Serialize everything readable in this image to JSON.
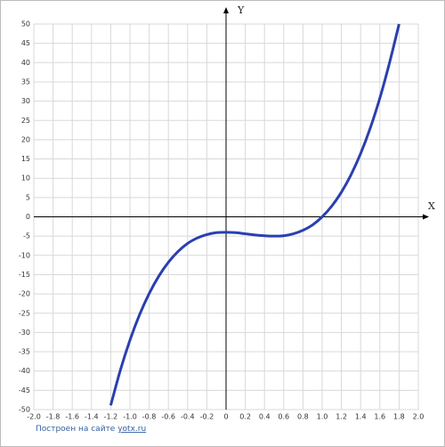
{
  "chart_data": {
    "type": "line",
    "x_label": "X",
    "y_label": "Y",
    "x": [
      -1.2,
      -1.1,
      -1.0,
      -0.9,
      -0.8,
      -0.7,
      -0.6,
      -0.5,
      -0.4,
      -0.3,
      -0.2,
      -0.1,
      0,
      0.1,
      0.2,
      0.3,
      0.4,
      0.5,
      0.6,
      0.7,
      0.8,
      0.9,
      1.0,
      1.1,
      1.2,
      1.3,
      1.4,
      1.5,
      1.6,
      1.7,
      1.8
    ],
    "series": [
      {
        "color": "#2a3fb0",
        "values": [
          -48.9,
          -39.8,
          -32,
          -25.4,
          -19.9,
          -15.4,
          -11.8,
          -9,
          -6.9,
          -5.5,
          -4.6,
          -4.1,
          -4,
          -4.1,
          -4.4,
          -4.7,
          -4.9,
          -5,
          -4.9,
          -4.4,
          -3.5,
          -2.1,
          0,
          2.8,
          6.4,
          10.9,
          16.4,
          23,
          30.8,
          39.9,
          50
        ]
      }
    ],
    "xlim": [
      -2.0,
      2.0
    ],
    "ylim": [
      -50,
      50
    ],
    "xticks": [
      {
        "value": -2.0,
        "label": "-2.0"
      },
      -1.8,
      -1.6,
      -1.4,
      -1.2,
      {
        "value": -1.0,
        "label": "-1.0"
      },
      -0.8,
      -0.6,
      -0.4,
      -0.2,
      0,
      0.2,
      0.4,
      0.6,
      0.8,
      {
        "value": 1.0,
        "label": "1.0"
      },
      1.2,
      1.4,
      1.6,
      1.8,
      {
        "value": 2.0,
        "label": "2.0"
      }
    ],
    "yticks": [
      -50,
      -45,
      -40,
      -35,
      -30,
      -25,
      -20,
      -15,
      -10,
      -5,
      0,
      5,
      10,
      15,
      20,
      25,
      30,
      35,
      40,
      45,
      50
    ],
    "grid": true
  },
  "footer": {
    "text": "Построен на сайте",
    "link": "yotx.ru"
  }
}
